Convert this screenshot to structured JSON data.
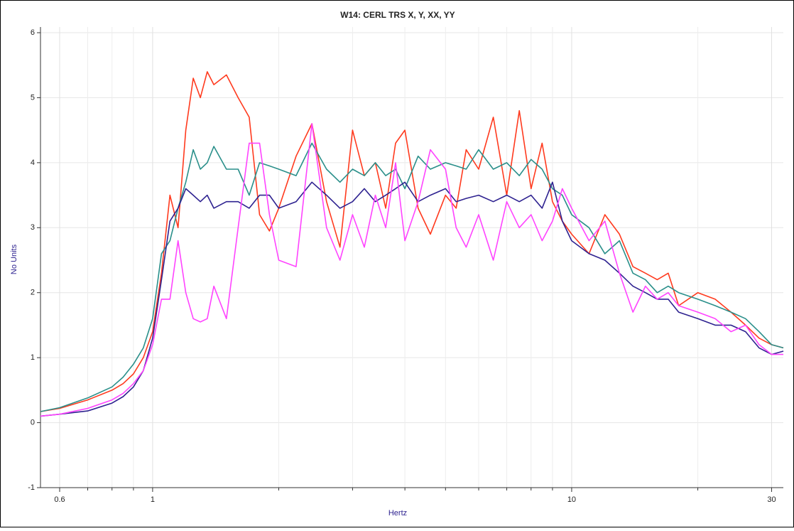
{
  "chart_data": {
    "type": "line",
    "title": "W14: CERL TRS X, Y, XX, YY",
    "xlabel": "Hertz",
    "ylabel": "No Units",
    "xscale": "log",
    "grid": true,
    "xlim": [
      0.54,
      32
    ],
    "ylim": [
      -1,
      6
    ],
    "xticks": [
      0.6,
      1,
      10,
      30
    ],
    "xminorticks": [
      0.7,
      0.8,
      0.9,
      2,
      3,
      4,
      5,
      6,
      7,
      8,
      9,
      20
    ],
    "yticks": [
      -1,
      0,
      1,
      2,
      3,
      4,
      5,
      6
    ],
    "x": [
      0.54,
      0.6,
      0.7,
      0.8,
      0.85,
      0.9,
      0.95,
      1.0,
      1.05,
      1.1,
      1.15,
      1.2,
      1.25,
      1.3,
      1.35,
      1.4,
      1.5,
      1.6,
      1.7,
      1.8,
      1.9,
      2.0,
      2.2,
      2.4,
      2.6,
      2.8,
      3.0,
      3.2,
      3.4,
      3.6,
      3.8,
      4.0,
      4.3,
      4.6,
      5.0,
      5.3,
      5.6,
      6.0,
      6.5,
      7.0,
      7.5,
      8.0,
      8.5,
      9.0,
      9.5,
      10,
      11,
      12,
      13,
      14,
      15,
      16,
      17,
      18,
      20,
      22,
      24,
      26,
      28,
      30,
      32
    ],
    "series": [
      {
        "color": "#ff3a1e",
        "values": [
          0.17,
          0.22,
          0.35,
          0.5,
          0.6,
          0.75,
          1.0,
          1.4,
          2.3,
          3.5,
          3.0,
          4.5,
          5.3,
          5.0,
          5.4,
          5.2,
          5.35,
          5.0,
          4.7,
          3.2,
          2.95,
          3.3,
          4.1,
          4.6,
          3.4,
          2.7,
          4.5,
          3.8,
          4.0,
          3.3,
          4.3,
          4.5,
          3.3,
          2.9,
          3.5,
          3.3,
          4.2,
          3.9,
          4.7,
          3.5,
          4.8,
          3.6,
          4.3,
          3.4,
          3.1,
          2.9,
          2.6,
          3.2,
          2.9,
          2.4,
          2.3,
          2.2,
          2.3,
          1.8,
          2.0,
          1.9,
          1.7,
          1.5,
          1.3,
          1.2,
          1.15
        ]
      },
      {
        "color": "#2a8f8a",
        "values": [
          0.17,
          0.23,
          0.38,
          0.55,
          0.7,
          0.9,
          1.15,
          1.6,
          2.6,
          2.8,
          3.3,
          3.7,
          4.2,
          3.9,
          4.0,
          4.25,
          3.9,
          3.9,
          3.5,
          4.0,
          3.95,
          3.9,
          3.8,
          4.3,
          3.9,
          3.7,
          3.9,
          3.8,
          4.0,
          3.8,
          3.9,
          3.6,
          4.1,
          3.9,
          4.0,
          3.95,
          3.9,
          4.2,
          3.9,
          4.0,
          3.8,
          4.05,
          3.9,
          3.6,
          3.5,
          3.2,
          3.0,
          2.6,
          2.8,
          2.3,
          2.2,
          2.0,
          2.1,
          2.0,
          1.9,
          1.8,
          1.7,
          1.6,
          1.4,
          1.2,
          1.15
        ]
      },
      {
        "color": "#2e2290",
        "values": [
          0.1,
          0.13,
          0.18,
          0.3,
          0.4,
          0.55,
          0.8,
          1.3,
          2.2,
          3.1,
          3.3,
          3.6,
          3.5,
          3.4,
          3.5,
          3.3,
          3.4,
          3.4,
          3.3,
          3.5,
          3.5,
          3.3,
          3.4,
          3.7,
          3.5,
          3.3,
          3.4,
          3.6,
          3.4,
          3.5,
          3.6,
          3.7,
          3.4,
          3.5,
          3.6,
          3.4,
          3.45,
          3.5,
          3.4,
          3.5,
          3.4,
          3.5,
          3.3,
          3.7,
          3.1,
          2.8,
          2.6,
          2.5,
          2.3,
          2.1,
          2.0,
          1.9,
          1.9,
          1.7,
          1.6,
          1.5,
          1.5,
          1.4,
          1.15,
          1.05,
          1.1
        ]
      },
      {
        "color": "#ff44ff",
        "values": [
          0.1,
          0.13,
          0.22,
          0.35,
          0.45,
          0.6,
          0.8,
          1.2,
          1.9,
          1.9,
          2.8,
          2.0,
          1.6,
          1.55,
          1.6,
          2.1,
          1.6,
          3.0,
          4.3,
          4.3,
          3.2,
          2.5,
          2.4,
          4.6,
          3.0,
          2.5,
          3.2,
          2.7,
          3.5,
          3.0,
          4.0,
          2.8,
          3.4,
          4.2,
          3.9,
          3.0,
          2.7,
          3.2,
          2.5,
          3.4,
          3.0,
          3.2,
          2.8,
          3.1,
          3.6,
          3.3,
          2.8,
          3.1,
          2.3,
          1.7,
          2.1,
          1.9,
          2.0,
          1.8,
          1.7,
          1.6,
          1.4,
          1.5,
          1.2,
          1.05,
          1.05
        ]
      }
    ]
  }
}
